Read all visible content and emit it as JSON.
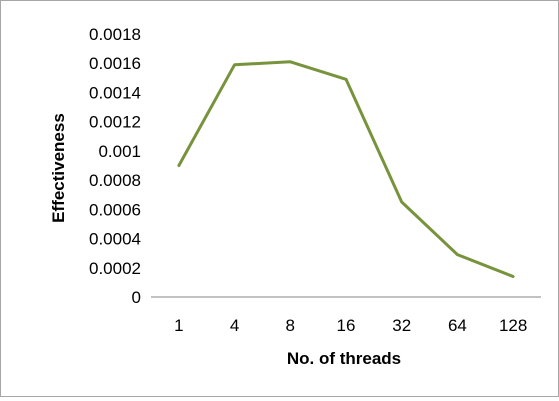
{
  "chart_data": {
    "type": "line",
    "title": "",
    "xlabel": "No. of threads",
    "ylabel": "Effectiveness",
    "categories": [
      "1",
      "4",
      "8",
      "16",
      "32",
      "64",
      "128"
    ],
    "series": [
      {
        "values": [
          0.0009,
          0.00159,
          0.00161,
          0.00149,
          0.00065,
          0.00029,
          0.00014
        ]
      }
    ],
    "ylim": [
      0,
      0.0018
    ],
    "yticks": [
      "0",
      "0.0002",
      "0.0004",
      "0.0006",
      "0.0008",
      "0.001",
      "0.0012",
      "0.0014",
      "0.0016",
      "0.0018"
    ],
    "grid": false,
    "legend": "none",
    "colors": {
      "line": "#77933c",
      "axis": "#868686"
    }
  }
}
